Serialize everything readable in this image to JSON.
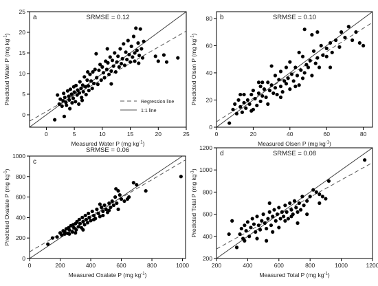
{
  "chart_data": [
    {
      "id": "a",
      "type": "scatter",
      "panel_label": "a",
      "annotation": "SRMSE = 0.12",
      "xlabel": "Measured Water P (mg kg",
      "ylabel": "Predicted Water P (mg kg",
      "unit_superscript": "-1",
      "xlim": [
        -3,
        25
      ],
      "ylim": [
        -3,
        25
      ],
      "xticks": [
        0,
        5,
        10,
        15,
        20,
        25
      ],
      "yticks": [
        0,
        5,
        10,
        15,
        20,
        25
      ],
      "legend": {
        "placement": "bottom-right",
        "entries": [
          {
            "label": "Regression line",
            "style": "dashed"
          },
          {
            "label": "1:1 line",
            "style": "solid"
          }
        ]
      },
      "regression": {
        "slope": 0.78,
        "intercept": 0.8
      },
      "points": [
        [
          1.5,
          -1.2
        ],
        [
          2.0,
          4.8
        ],
        [
          2.3,
          2.6
        ],
        [
          2.5,
          3.8
        ],
        [
          2.8,
          2.1
        ],
        [
          3.0,
          3.4
        ],
        [
          3.1,
          5.2
        ],
        [
          3.3,
          4.2
        ],
        [
          3.5,
          3.0
        ],
        [
          3.6,
          2.3
        ],
        [
          3.8,
          5.8
        ],
        [
          4.0,
          4.5
        ],
        [
          4.1,
          3.6
        ],
        [
          4.2,
          1.5
        ],
        [
          4.3,
          6.2
        ],
        [
          4.5,
          5.0
        ],
        [
          4.6,
          2.9
        ],
        [
          4.8,
          4.0
        ],
        [
          4.9,
          6.8
        ],
        [
          5.0,
          5.5
        ],
        [
          5.2,
          3.2
        ],
        [
          5.3,
          7.1
        ],
        [
          5.5,
          4.8
        ],
        [
          5.6,
          6.0
        ],
        [
          5.8,
          2.6
        ],
        [
          5.9,
          5.3
        ],
        [
          6.0,
          8.0
        ],
        [
          6.2,
          6.4
        ],
        [
          6.3,
          4.2
        ],
        [
          6.5,
          7.2
        ],
        [
          6.6,
          5.6
        ],
        [
          6.8,
          9.2
        ],
        [
          7.0,
          6.8
        ],
        [
          7.1,
          4.9
        ],
        [
          7.3,
          8.4
        ],
        [
          7.5,
          7.0
        ],
        [
          7.6,
          5.9
        ],
        [
          7.8,
          9.8
        ],
        [
          8.0,
          8.2
        ],
        [
          8.2,
          6.4
        ],
        [
          8.3,
          10.4
        ],
        [
          8.5,
          7.6
        ],
        [
          8.7,
          11.0
        ],
        [
          8.9,
          14.8
        ],
        [
          9.0,
          9.0
        ],
        [
          9.2,
          7.4
        ],
        [
          9.4,
          10.8
        ],
        [
          9.6,
          12.2
        ],
        [
          9.8,
          8.4
        ],
        [
          10.0,
          11.6
        ],
        [
          10.2,
          10.2
        ],
        [
          10.4,
          9.0
        ],
        [
          10.6,
          13.0
        ],
        [
          10.8,
          11.0
        ],
        [
          11.0,
          12.6
        ],
        [
          11.2,
          9.8
        ],
        [
          11.4,
          14.0
        ],
        [
          11.6,
          10.6
        ],
        [
          11.8,
          13.2
        ],
        [
          12.0,
          11.8
        ],
        [
          12.2,
          15.0
        ],
        [
          12.4,
          10.4
        ],
        [
          12.6,
          12.8
        ],
        [
          12.8,
          14.2
        ],
        [
          13.0,
          11.6
        ],
        [
          13.2,
          16.0
        ],
        [
          13.4,
          12.4
        ],
        [
          13.6,
          13.6
        ],
        [
          13.8,
          17.2
        ],
        [
          14.0,
          12.0
        ],
        [
          14.2,
          15.2
        ],
        [
          14.4,
          13.4
        ],
        [
          14.6,
          18.0
        ],
        [
          14.8,
          14.6
        ],
        [
          15.0,
          12.8
        ],
        [
          15.2,
          16.6
        ],
        [
          15.4,
          14.0
        ],
        [
          15.6,
          19.0
        ],
        [
          15.8,
          13.0
        ],
        [
          16.0,
          21.0
        ],
        [
          16.2,
          15.6
        ],
        [
          16.4,
          17.4
        ],
        [
          16.6,
          14.4
        ],
        [
          16.8,
          20.8
        ],
        [
          17.0,
          16.0
        ],
        [
          17.2,
          13.8
        ],
        [
          17.4,
          17.8
        ],
        [
          15.8,
          15.0
        ],
        [
          16.5,
          12.5
        ],
        [
          21.0,
          14.5
        ],
        [
          21.5,
          12.8
        ],
        [
          23.5,
          13.8
        ],
        [
          19.5,
          14.2
        ],
        [
          20.0,
          13.0
        ],
        [
          6.4,
          3.5
        ],
        [
          3.2,
          -0.4
        ],
        [
          11.6,
          7.5
        ],
        [
          10.9,
          16.0
        ],
        [
          7.4,
          10.4
        ]
      ]
    },
    {
      "id": "b",
      "type": "scatter",
      "panel_label": "b",
      "annotation": "SRMSE = 0.10",
      "xlabel": "Measured Olsen P (mg kg",
      "ylabel": "Predicted Olsen P (mg kg",
      "unit_superscript": "-1",
      "xlim": [
        0,
        85
      ],
      "ylim": [
        0,
        85
      ],
      "xticks": [
        0,
        20,
        40,
        60,
        80
      ],
      "yticks": [
        0,
        20,
        40,
        60,
        80
      ],
      "regression": {
        "slope": 0.86,
        "intercept": 4.0
      },
      "points": [
        [
          7,
          3
        ],
        [
          9,
          13
        ],
        [
          10,
          17
        ],
        [
          11,
          10
        ],
        [
          12,
          20
        ],
        [
          13,
          15
        ],
        [
          14,
          11
        ],
        [
          15,
          18
        ],
        [
          15,
          24
        ],
        [
          16,
          14
        ],
        [
          17,
          20
        ],
        [
          18,
          17
        ],
        [
          19,
          24
        ],
        [
          19,
          12
        ],
        [
          20,
          27
        ],
        [
          21,
          21
        ],
        [
          22,
          16
        ],
        [
          23,
          25
        ],
        [
          24,
          30
        ],
        [
          24,
          19
        ],
        [
          25,
          23
        ],
        [
          26,
          28
        ],
        [
          27,
          22
        ],
        [
          28,
          33
        ],
        [
          28,
          17
        ],
        [
          29,
          27
        ],
        [
          30,
          31
        ],
        [
          31,
          25
        ],
        [
          32,
          38
        ],
        [
          32,
          29
        ],
        [
          33,
          24
        ],
        [
          34,
          35
        ],
        [
          35,
          30
        ],
        [
          35,
          41
        ],
        [
          36,
          26
        ],
        [
          37,
          34
        ],
        [
          38,
          44
        ],
        [
          38,
          32
        ],
        [
          39,
          36
        ],
        [
          40,
          28
        ],
        [
          40,
          48
        ],
        [
          41,
          39
        ],
        [
          42,
          34
        ],
        [
          43,
          44
        ],
        [
          44,
          38
        ],
        [
          45,
          31
        ],
        [
          46,
          42
        ],
        [
          47,
          52
        ],
        [
          47,
          36
        ],
        [
          48,
          40
        ],
        [
          49,
          46
        ],
        [
          50,
          44
        ],
        [
          51,
          49
        ],
        [
          52,
          38
        ],
        [
          53,
          56
        ],
        [
          54,
          47
        ],
        [
          55,
          51
        ],
        [
          56,
          44
        ],
        [
          57,
          60
        ],
        [
          58,
          53
        ],
        [
          60,
          58
        ],
        [
          62,
          62
        ],
        [
          63,
          55
        ],
        [
          65,
          64
        ],
        [
          67,
          59
        ],
        [
          68,
          70
        ],
        [
          70,
          66
        ],
        [
          72,
          74
        ],
        [
          74,
          64
        ],
        [
          76,
          70
        ],
        [
          78,
          62
        ],
        [
          80,
          60
        ],
        [
          48,
          72
        ],
        [
          52,
          68
        ],
        [
          55,
          70
        ],
        [
          20,
          13
        ],
        [
          30,
          45
        ],
        [
          25,
          33
        ],
        [
          45,
          55
        ],
        [
          60,
          52
        ],
        [
          62,
          44
        ],
        [
          43,
          30
        ],
        [
          35,
          22
        ],
        [
          23,
          33
        ],
        [
          13,
          24
        ]
      ]
    },
    {
      "id": "c",
      "type": "scatter",
      "panel_label": "c",
      "annotation": "SRMSE = 0.06",
      "xlabel": "Measured Oxalate P (mg kg",
      "ylabel": "Predicted Oxalate P (mg kg",
      "unit_superscript": "-1",
      "xlim": [
        0,
        1020
      ],
      "ylim": [
        0,
        1000
      ],
      "xticks": [
        0,
        200,
        400,
        600,
        800,
        1000
      ],
      "yticks": [
        0,
        200,
        400,
        600,
        800,
        1000
      ],
      "regression": {
        "slope": 0.88,
        "intercept": 65
      },
      "points": [
        [
          120,
          140
        ],
        [
          150,
          200
        ],
        [
          180,
          210
        ],
        [
          200,
          250
        ],
        [
          210,
          230
        ],
        [
          220,
          270
        ],
        [
          230,
          260
        ],
        [
          240,
          290
        ],
        [
          250,
          245
        ],
        [
          255,
          300
        ],
        [
          260,
          280
        ],
        [
          270,
          320
        ],
        [
          280,
          260
        ],
        [
          285,
          330
        ],
        [
          290,
          300
        ],
        [
          300,
          340
        ],
        [
          305,
          280
        ],
        [
          310,
          360
        ],
        [
          320,
          310
        ],
        [
          325,
          380
        ],
        [
          330,
          340
        ],
        [
          340,
          300
        ],
        [
          345,
          400
        ],
        [
          350,
          360
        ],
        [
          360,
          330
        ],
        [
          365,
          420
        ],
        [
          370,
          380
        ],
        [
          380,
          350
        ],
        [
          385,
          440
        ],
        [
          390,
          400
        ],
        [
          400,
          370
        ],
        [
          410,
          460
        ],
        [
          420,
          420
        ],
        [
          430,
          390
        ],
        [
          440,
          480
        ],
        [
          450,
          440
        ],
        [
          460,
          410
        ],
        [
          470,
          500
        ],
        [
          480,
          460
        ],
        [
          490,
          520
        ],
        [
          500,
          480
        ],
        [
          510,
          450
        ],
        [
          520,
          540
        ],
        [
          530,
          500
        ],
        [
          540,
          560
        ],
        [
          550,
          520
        ],
        [
          560,
          600
        ],
        [
          565,
          680
        ],
        [
          570,
          540
        ],
        [
          580,
          660
        ],
        [
          590,
          620
        ],
        [
          600,
          580
        ],
        [
          620,
          560
        ],
        [
          650,
          600
        ],
        [
          680,
          740
        ],
        [
          700,
          720
        ],
        [
          760,
          660
        ],
        [
          990,
          800
        ],
        [
          350,
          280
        ],
        [
          300,
          250
        ],
        [
          260,
          240
        ],
        [
          230,
          240
        ],
        [
          480,
          420
        ],
        [
          520,
          470
        ],
        [
          420,
          380
        ],
        [
          460,
          530
        ],
        [
          580,
          480
        ],
        [
          640,
          580
        ]
      ]
    },
    {
      "id": "d",
      "type": "scatter",
      "panel_label": "d",
      "annotation": "SRMSE = 0.08",
      "xlabel": "Measured Total P (mg kg",
      "ylabel": "Predicted Total P (mg kg",
      "unit_superscript": "-1",
      "xlim": [
        200,
        1200
      ],
      "ylim": [
        200,
        1200
      ],
      "xticks": [
        200,
        400,
        600,
        800,
        1000,
        1200
      ],
      "yticks": [
        200,
        400,
        600,
        800,
        1000,
        1200
      ],
      "regression": {
        "slope": 0.78,
        "intercept": 130
      },
      "points": [
        [
          280,
          420
        ],
        [
          300,
          540
        ],
        [
          330,
          300
        ],
        [
          350,
          420
        ],
        [
          360,
          470
        ],
        [
          370,
          380
        ],
        [
          380,
          500
        ],
        [
          390,
          450
        ],
        [
          400,
          530
        ],
        [
          410,
          400
        ],
        [
          420,
          480
        ],
        [
          430,
          560
        ],
        [
          440,
          510
        ],
        [
          450,
          440
        ],
        [
          460,
          580
        ],
        [
          470,
          500
        ],
        [
          480,
          460
        ],
        [
          490,
          540
        ],
        [
          500,
          600
        ],
        [
          510,
          520
        ],
        [
          520,
          470
        ],
        [
          530,
          560
        ],
        [
          540,
          620
        ],
        [
          550,
          500
        ],
        [
          560,
          580
        ],
        [
          570,
          640
        ],
        [
          580,
          540
        ],
        [
          590,
          600
        ],
        [
          600,
          660
        ],
        [
          610,
          560
        ],
        [
          620,
          620
        ],
        [
          630,
          580
        ],
        [
          640,
          680
        ],
        [
          650,
          620
        ],
        [
          660,
          560
        ],
        [
          670,
          700
        ],
        [
          680,
          640
        ],
        [
          690,
          600
        ],
        [
          700,
          720
        ],
        [
          710,
          660
        ],
        [
          720,
          620
        ],
        [
          730,
          700
        ],
        [
          740,
          640
        ],
        [
          750,
          760
        ],
        [
          760,
          680
        ],
        [
          780,
          720
        ],
        [
          800,
          760
        ],
        [
          820,
          820
        ],
        [
          840,
          800
        ],
        [
          860,
          780
        ],
        [
          880,
          760
        ],
        [
          900,
          740
        ],
        [
          920,
          900
        ],
        [
          1150,
          1090
        ],
        [
          520,
          360
        ],
        [
          560,
          440
        ],
        [
          600,
          480
        ],
        [
          640,
          540
        ],
        [
          680,
          580
        ],
        [
          460,
          380
        ],
        [
          380,
          360
        ],
        [
          720,
          520
        ],
        [
          860,
          700
        ],
        [
          780,
          600
        ],
        [
          540,
          700
        ]
      ]
    }
  ]
}
